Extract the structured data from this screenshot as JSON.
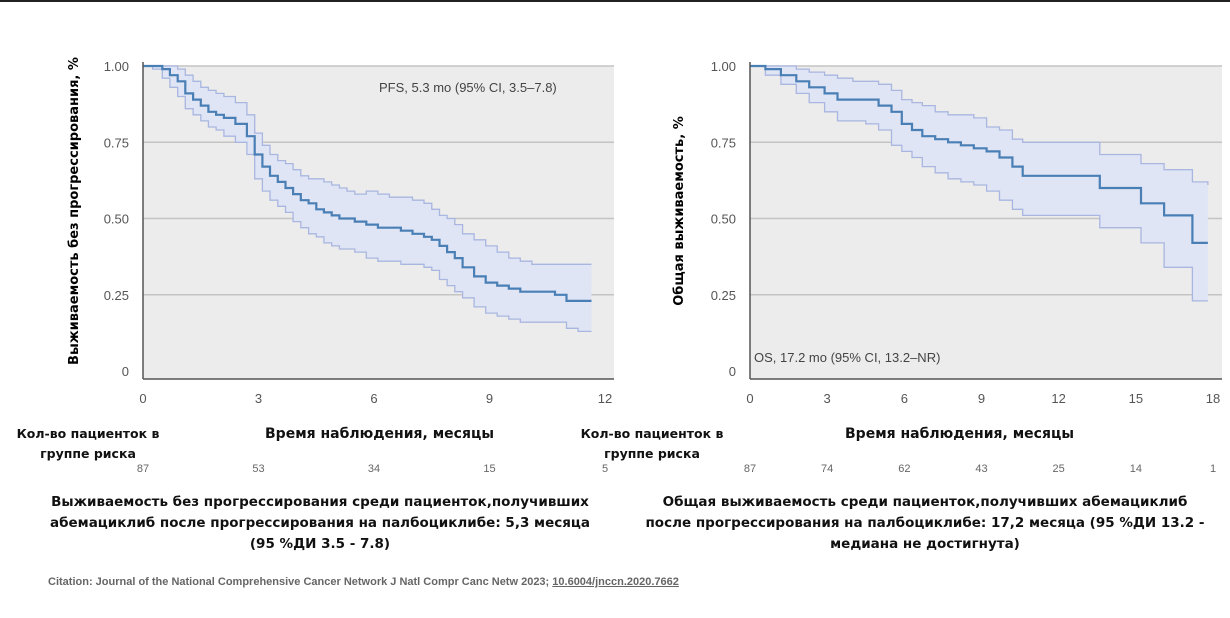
{
  "chart_data": [
    {
      "type": "line",
      "subtype": "kaplan-meier",
      "ylabel": "Выживаемость без прогрессирования, %",
      "xlabel": "Время наблюдения, месяцы",
      "annotation": "PFS, 5.3 mo (95% CI, 3.5–7.8)",
      "x_ticks": [
        "0",
        "3",
        "6",
        "9",
        "12"
      ],
      "y_ticks": [
        "0",
        "0.25",
        "0.50",
        "0.75",
        "1.00"
      ],
      "xlim": [
        0,
        12
      ],
      "ylim": [
        0,
        1
      ],
      "grid": true,
      "series": [
        {
          "x": [
            0,
            0.25,
            0.5,
            0.7,
            0.9,
            1.1,
            1.3,
            1.5,
            1.7,
            1.9,
            2.1,
            2.4,
            2.7,
            2.9,
            3.1,
            3.3,
            3.5,
            3.7,
            3.9,
            4.1,
            4.3,
            4.5,
            4.7,
            4.9,
            5.1,
            5.3,
            5.5,
            5.8,
            6.1,
            6.4,
            6.7,
            7.0,
            7.3,
            7.5,
            7.7,
            7.9,
            8.1,
            8.3,
            8.6,
            8.9,
            9.2,
            9.5,
            9.8,
            10.1,
            10.4,
            10.7,
            11.0,
            11.3,
            11.65
          ],
          "y": [
            1.0,
            1.0,
            0.99,
            0.97,
            0.95,
            0.91,
            0.89,
            0.87,
            0.85,
            0.84,
            0.83,
            0.81,
            0.77,
            0.71,
            0.67,
            0.64,
            0.62,
            0.6,
            0.58,
            0.56,
            0.55,
            0.53,
            0.52,
            0.51,
            0.5,
            0.5,
            0.49,
            0.48,
            0.47,
            0.47,
            0.46,
            0.45,
            0.44,
            0.43,
            0.41,
            0.39,
            0.37,
            0.34,
            0.31,
            0.29,
            0.28,
            0.27,
            0.26,
            0.26,
            0.26,
            0.25,
            0.23,
            0.23,
            0.23
          ],
          "ci_upper": [
            1.0,
            1.0,
            1.0,
            1.0,
            0.99,
            0.97,
            0.95,
            0.93,
            0.92,
            0.91,
            0.9,
            0.88,
            0.84,
            0.78,
            0.74,
            0.71,
            0.69,
            0.68,
            0.66,
            0.64,
            0.63,
            0.63,
            0.62,
            0.61,
            0.6,
            0.59,
            0.58,
            0.59,
            0.58,
            0.57,
            0.57,
            0.56,
            0.55,
            0.53,
            0.51,
            0.5,
            0.48,
            0.45,
            0.43,
            0.41,
            0.39,
            0.37,
            0.36,
            0.35,
            0.35,
            0.35,
            0.35,
            0.35,
            0.35
          ],
          "ci_lower": [
            1.0,
            0.99,
            0.96,
            0.93,
            0.9,
            0.86,
            0.84,
            0.82,
            0.8,
            0.79,
            0.77,
            0.75,
            0.71,
            0.63,
            0.59,
            0.56,
            0.54,
            0.52,
            0.49,
            0.47,
            0.45,
            0.44,
            0.42,
            0.41,
            0.4,
            0.4,
            0.39,
            0.37,
            0.36,
            0.36,
            0.35,
            0.35,
            0.34,
            0.33,
            0.3,
            0.28,
            0.26,
            0.24,
            0.21,
            0.19,
            0.18,
            0.17,
            0.16,
            0.16,
            0.16,
            0.16,
            0.14,
            0.13,
            0.13
          ]
        }
      ],
      "risk_label": "Кол-во пациенток в группе риска",
      "at_risk": [
        "87",
        "53",
        "34",
        "15",
        "5"
      ]
    },
    {
      "type": "line",
      "subtype": "kaplan-meier",
      "ylabel": "Общая выживаемость, %",
      "xlabel": "Время наблюдения, месяцы",
      "annotation": "OS, 17.2 mo (95% CI, 13.2–NR)",
      "x_ticks": [
        "0",
        "3",
        "6",
        "9",
        "12",
        "15",
        "18"
      ],
      "y_ticks": [
        "0",
        "0.25",
        "0.50",
        "0.75",
        "1.00"
      ],
      "xlim": [
        0,
        18
      ],
      "ylim": [
        0,
        1
      ],
      "grid": true,
      "series": [
        {
          "x": [
            0,
            0.6,
            1.2,
            1.8,
            2.3,
            2.9,
            3.4,
            4.0,
            4.5,
            5.0,
            5.5,
            5.9,
            6.3,
            6.7,
            7.2,
            7.7,
            8.2,
            8.7,
            9.2,
            9.7,
            10.2,
            10.6,
            11.0,
            12.0,
            13.1,
            13.6,
            14.3,
            15.2,
            16.1,
            16.6,
            17.2,
            17.8
          ],
          "y": [
            1.0,
            0.99,
            0.97,
            0.95,
            0.93,
            0.91,
            0.89,
            0.89,
            0.89,
            0.87,
            0.85,
            0.81,
            0.79,
            0.77,
            0.76,
            0.75,
            0.74,
            0.73,
            0.72,
            0.7,
            0.67,
            0.64,
            0.64,
            0.64,
            0.64,
            0.6,
            0.6,
            0.55,
            0.51,
            0.51,
            0.42,
            0.42
          ],
          "ci_upper": [
            1.0,
            1.0,
            1.0,
            0.99,
            0.98,
            0.97,
            0.96,
            0.95,
            0.95,
            0.94,
            0.92,
            0.89,
            0.88,
            0.87,
            0.85,
            0.84,
            0.84,
            0.83,
            0.8,
            0.79,
            0.76,
            0.75,
            0.75,
            0.75,
            0.75,
            0.71,
            0.71,
            0.68,
            0.66,
            0.66,
            0.62,
            0.61
          ],
          "ci_lower": [
            1.0,
            0.97,
            0.94,
            0.91,
            0.88,
            0.85,
            0.82,
            0.82,
            0.81,
            0.79,
            0.74,
            0.72,
            0.7,
            0.67,
            0.65,
            0.63,
            0.62,
            0.61,
            0.59,
            0.56,
            0.53,
            0.51,
            0.51,
            0.51,
            0.51,
            0.47,
            0.47,
            0.42,
            0.34,
            0.34,
            0.23,
            0.23
          ]
        }
      ],
      "risk_label": "Кол-во пациенток в группе риска",
      "at_risk": [
        "87",
        "74",
        "62",
        "43",
        "25",
        "14",
        "1"
      ]
    }
  ],
  "captions": {
    "left": [
      "Выживаемость без прогрессирования среди пациенток,получивших",
      "абемациклиб после прогрессирования на палбоциклибе: 5,3 месяца",
      "(95 %ДИ 3.5 - 7.8)"
    ],
    "right": [
      "Общая выживаемость среди пациенток,получивших абемациклиб",
      "после прогрессирования на палбоциклибе: 17,2 месяца (95 %ДИ 13.2 -",
      "медиана не достигнута)"
    ]
  },
  "citation": {
    "text": "Citation: Journal of the National Comprehensive Cancer Network J Natl Compr Canc Netw 2023; ",
    "doi": "10.6004/jnccn.2020.7662"
  },
  "colors": {
    "curve": "#4a7fb5",
    "ci_fill": "#dfe5f5",
    "ci_line": "#a9b6e0",
    "panel_bg": "#ececec",
    "grid": "#c4c4c4",
    "axis": "#555555"
  }
}
